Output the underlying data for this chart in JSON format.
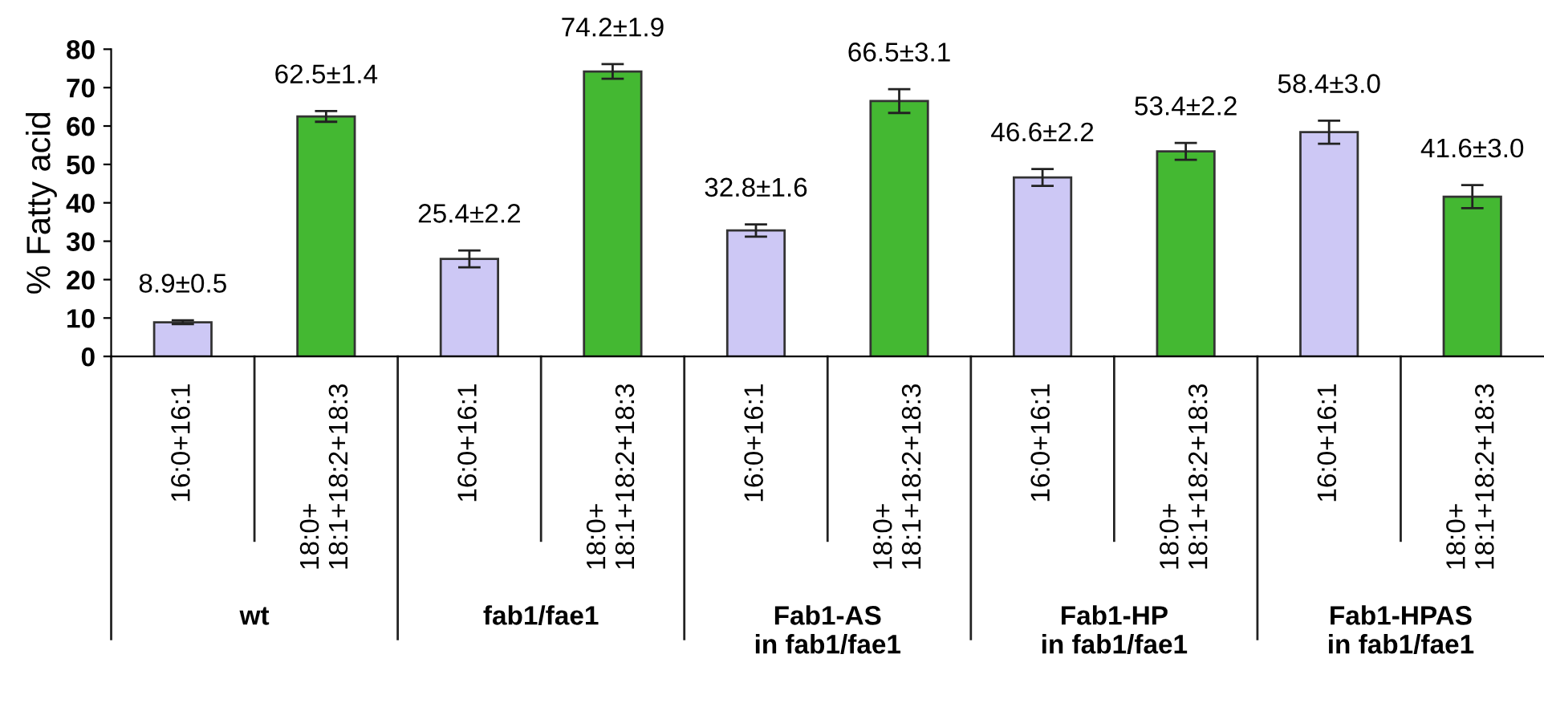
{
  "chart_data": {
    "type": "bar",
    "ylabel": "% Fatty acid",
    "categories": [
      "16:0+16:1",
      "18:0+\n18:1+18:2+18:3",
      "16:0+16:1",
      "18:0+\n18:1+18:2+18:3",
      "16:0+16:1",
      "18:0+\n18:1+18:2+18:3",
      "16:0+16:1",
      "18:0+\n18:1+18:2+18:3",
      "16:0+16:1",
      "18:0+\n18:1+18:2+18:3"
    ],
    "values": [
      8.9,
      62.5,
      25.4,
      74.2,
      32.8,
      66.5,
      46.6,
      53.4,
      58.4,
      41.6
    ],
    "errors": [
      0.5,
      1.4,
      2.2,
      1.9,
      1.6,
      3.1,
      2.2,
      2.2,
      3.0,
      3.0
    ],
    "value_labels": [
      "8.9±0.5",
      "62.5±1.4",
      "25.4±2.2",
      "74.2±1.9",
      "32.8±1.6",
      "66.5±3.1",
      "46.6±2.2",
      "53.4±2.2",
      "58.4±3.0",
      "41.6±3.0"
    ],
    "colors": [
      "#cdc8f5",
      "#44b832",
      "#cdc8f5",
      "#44b832",
      "#cdc8f5",
      "#44b832",
      "#cdc8f5",
      "#44b832",
      "#cdc8f5",
      "#44b832"
    ],
    "ylim": [
      0,
      80
    ],
    "yticks": [
      0,
      10,
      20,
      30,
      40,
      50,
      60,
      70,
      80
    ],
    "annotations": [
      "wt",
      "fab1/fae1",
      "Fab1-AS\nin fab1/fae1",
      "Fab1-HP\nin fab1/fae1",
      "Fab1-HPAS\nin fab1/fae1"
    ],
    "grid": false,
    "legend": false
  }
}
